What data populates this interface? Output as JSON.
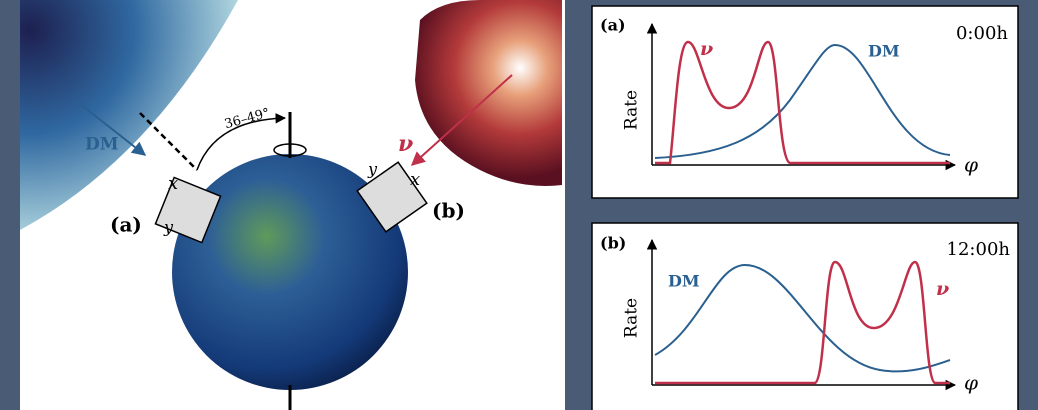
{
  "left": {
    "dm_label": "DM",
    "angle": "36–49°",
    "nu_label": "ν",
    "detector_a": {
      "label": "(a)",
      "x": "x",
      "y": "y"
    },
    "detector_b": {
      "label": "(b)",
      "x": "x",
      "y": "y"
    }
  },
  "panels": [
    {
      "label": "(a)",
      "time": "0:00h",
      "y_axis": "Rate",
      "x_axis": "φ",
      "dm": "DM",
      "nu": "ν"
    },
    {
      "label": "(b)",
      "time": "12:00h",
      "y_axis": "Rate",
      "x_axis": "φ",
      "dm": "DM",
      "nu": "ν"
    }
  ]
}
